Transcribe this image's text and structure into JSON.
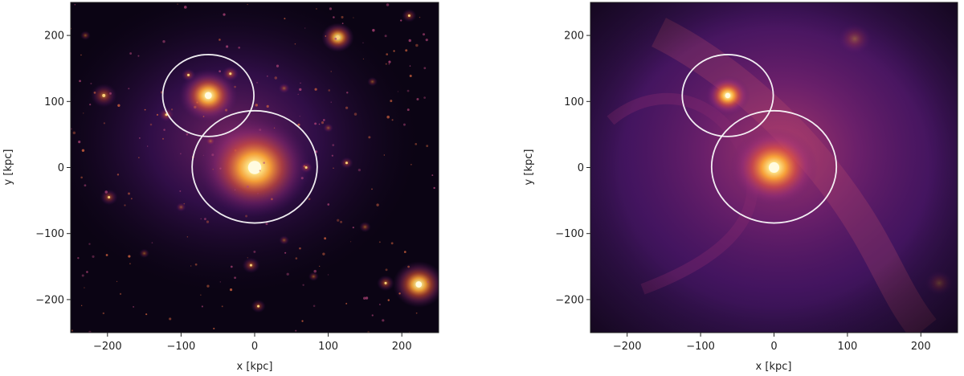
{
  "panels": [
    {
      "id": "left",
      "xlabel": "x [kpc]",
      "ylabel": "y [kpc]",
      "xlim": [
        -250,
        250
      ],
      "ylim": [
        -250,
        250
      ],
      "xticks": [
        -200,
        -100,
        0,
        100,
        200
      ],
      "yticks": [
        -200,
        -100,
        0,
        100,
        200
      ],
      "xtick_labels": [
        "−200",
        "−100",
        "0",
        "100",
        "200"
      ],
      "ytick_labels": [
        "−200",
        "−100",
        "0",
        "100",
        "200"
      ],
      "colormap": "inferno",
      "background_color": "#0b0414",
      "circles": [
        {
          "cx": -63,
          "cy": 109,
          "r": 62
        },
        {
          "cx": 0,
          "cy": 1,
          "r": 85
        }
      ],
      "bright_sources": [
        {
          "x": 0,
          "y": 0,
          "brightness": 1.0,
          "extent": 75
        },
        {
          "x": -63,
          "y": 109,
          "brightness": 0.9,
          "extent": 40
        },
        {
          "x": -33,
          "y": 142,
          "brightness": 0.55,
          "extent": 12
        },
        {
          "x": -90,
          "y": 140,
          "brightness": 0.4,
          "extent": 10
        },
        {
          "x": 113,
          "y": 197,
          "brightness": 0.75,
          "extent": 22
        },
        {
          "x": -205,
          "y": 109,
          "brightness": 0.6,
          "extent": 18
        },
        {
          "x": -198,
          "y": -45,
          "brightness": 0.5,
          "extent": 12
        },
        {
          "x": 223,
          "y": -177,
          "brightness": 0.85,
          "extent": 35
        },
        {
          "x": 178,
          "y": -175,
          "brightness": 0.55,
          "extent": 12
        },
        {
          "x": -5,
          "y": -148,
          "brightness": 0.5,
          "extent": 12
        },
        {
          "x": 5,
          "y": -210,
          "brightness": 0.45,
          "extent": 10
        },
        {
          "x": 70,
          "y": 0,
          "brightness": 0.45,
          "extent": 9
        },
        {
          "x": 125,
          "y": 7,
          "brightness": 0.4,
          "extent": 9
        },
        {
          "x": 210,
          "y": 230,
          "brightness": 0.45,
          "extent": 10
        },
        {
          "x": -120,
          "y": 80,
          "brightness": 0.45,
          "extent": 11
        },
        {
          "x": 40,
          "y": 120,
          "brightness": 0.35,
          "extent": 8
        },
        {
          "x": 150,
          "y": -90,
          "brightness": 0.35,
          "extent": 8
        },
        {
          "x": -150,
          "y": -130,
          "brightness": 0.3,
          "extent": 7
        },
        {
          "x": 80,
          "y": -165,
          "brightness": 0.35,
          "extent": 7
        },
        {
          "x": -100,
          "y": -60,
          "brightness": 0.3,
          "extent": 7
        },
        {
          "x": 100,
          "y": 60,
          "brightness": 0.3,
          "extent": 7
        },
        {
          "x": -230,
          "y": 200,
          "brightness": 0.3,
          "extent": 7
        },
        {
          "x": 40,
          "y": -110,
          "brightness": 0.35,
          "extent": 7
        },
        {
          "x": -60,
          "y": 40,
          "brightness": 0.3,
          "extent": 7
        },
        {
          "x": 160,
          "y": 130,
          "brightness": 0.3,
          "extent": 7
        }
      ]
    },
    {
      "id": "right",
      "xlabel": "x [kpc]",
      "ylabel": "y [kpc]",
      "xlim": [
        -250,
        250
      ],
      "ylim": [
        -250,
        250
      ],
      "xticks": [
        -200,
        -100,
        0,
        100,
        200
      ],
      "yticks": [
        -200,
        -100,
        0,
        100,
        200
      ],
      "xtick_labels": [
        "−200",
        "−100",
        "0",
        "100",
        "200"
      ],
      "ytick_labels": [
        "−200",
        "−100",
        "0",
        "100",
        "200"
      ],
      "colormap": "inferno",
      "background_color": "#3a1558",
      "circles": [
        {
          "cx": -63,
          "cy": 109,
          "r": 62
        },
        {
          "cx": 0,
          "cy": 1,
          "r": 85
        }
      ],
      "bright_sources": [
        {
          "x": 0,
          "y": 0,
          "brightness": 1.0,
          "extent": 60
        },
        {
          "x": -63,
          "y": 109,
          "brightness": 0.95,
          "extent": 30
        },
        {
          "x": 110,
          "y": 195,
          "brightness": 0.2,
          "extent": 25
        },
        {
          "x": 225,
          "y": -175,
          "brightness": 0.15,
          "extent": 20
        }
      ]
    }
  ]
}
